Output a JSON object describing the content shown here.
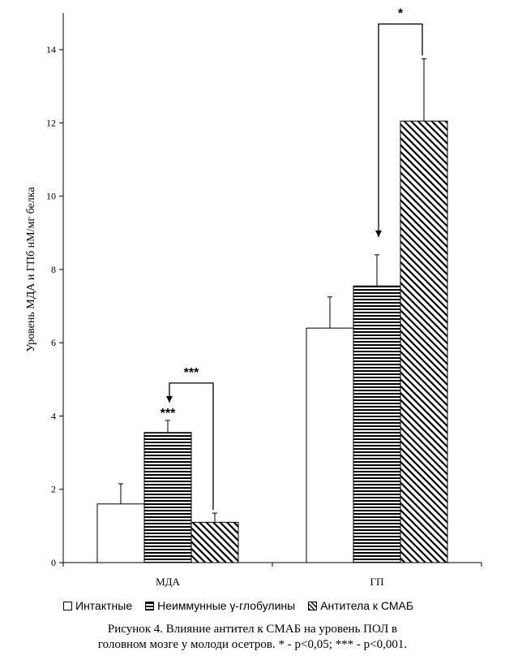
{
  "chart_data": {
    "type": "bar",
    "categories": [
      "МДА",
      "ГП"
    ],
    "series": [
      {
        "name": "Интактные",
        "values": [
          1.6,
          6.4
        ],
        "errors": [
          0.55,
          0.85
        ],
        "pattern": "white"
      },
      {
        "name": "Неиммунные γ-глобулины",
        "values": [
          3.55,
          7.55
        ],
        "errors": [
          0.33,
          0.85
        ],
        "pattern": "horizontal"
      },
      {
        "name": "Антитела к СМАБ",
        "values": [
          1.1,
          12.05
        ],
        "errors": [
          0.25,
          1.7
        ],
        "pattern": "diagonal"
      }
    ],
    "ylabel": "Уровень МДА и ГПб нМ/мг белка",
    "xlabel": "",
    "ylim": [
      0,
      15
    ],
    "yticks": [
      0,
      2,
      4,
      6,
      8,
      10,
      12,
      14
    ],
    "ytick_labels": [
      "0",
      "2",
      "4",
      "6",
      "8",
      "10",
      "12",
      "14"
    ],
    "grid": false,
    "legend_position": "bottom",
    "annotations": [
      {
        "text": "***",
        "category": 0,
        "series": 1,
        "type": "label"
      },
      {
        "text": "***",
        "category": 0,
        "from_series": 2,
        "to_series": 1,
        "type": "bracket",
        "level": 4.9
      },
      {
        "text": "*",
        "category": 1,
        "from_series": 2,
        "to_series": 1,
        "type": "bracket",
        "level": 14.7
      }
    ]
  },
  "legend": {
    "items": [
      "Интактные",
      "Неиммунные γ-глобулины",
      "Антитела к СМАБ"
    ]
  },
  "caption": {
    "line1": "Рисунок 4. Влияние антител к СМАБ на уровень ПОЛ в",
    "line2": "головном мозге у молоди осетров. * - p<0,05; *** - p<0,001."
  }
}
